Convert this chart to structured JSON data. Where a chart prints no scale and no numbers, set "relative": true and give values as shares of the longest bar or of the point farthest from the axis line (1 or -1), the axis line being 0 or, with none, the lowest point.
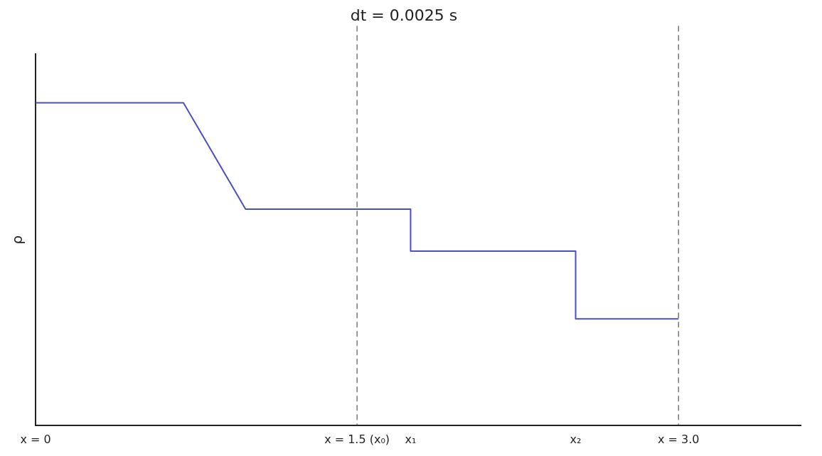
{
  "chart_data": {
    "type": "line",
    "title": "dt = 0.0025 s",
    "ylabel": "ρ",
    "relative": true,
    "x": [
      0,
      0.69,
      0.98,
      1.75,
      1.75,
      2.52,
      2.52,
      3.0
    ],
    "series": [
      {
        "color": "#4a4fc4",
        "values": [
          1,
          1,
          0.67,
          0.67,
          0.54,
          0.54,
          0.33,
          0.33
        ]
      }
    ],
    "xlim": [
      0,
      3.57
    ],
    "xticks": [
      {
        "value": 0,
        "label": "x = 0"
      },
      {
        "value": 1.5,
        "label": "x = 1.5 (x₀)"
      },
      {
        "value": 1.75,
        "label": "x₁"
      },
      {
        "value": 2.52,
        "label": "x₂"
      },
      {
        "value": 3.0,
        "label": "x = 3.0"
      }
    ],
    "ref_lines": [
      {
        "axis": "x",
        "value": 1.5,
        "color": "#333333",
        "line_style": "dashed"
      },
      {
        "axis": "x",
        "value": 3.0,
        "color": "#333333",
        "line_style": "dashed"
      }
    ],
    "grid": false,
    "legend": false,
    "marker": "none",
    "line_style": "solid"
  }
}
